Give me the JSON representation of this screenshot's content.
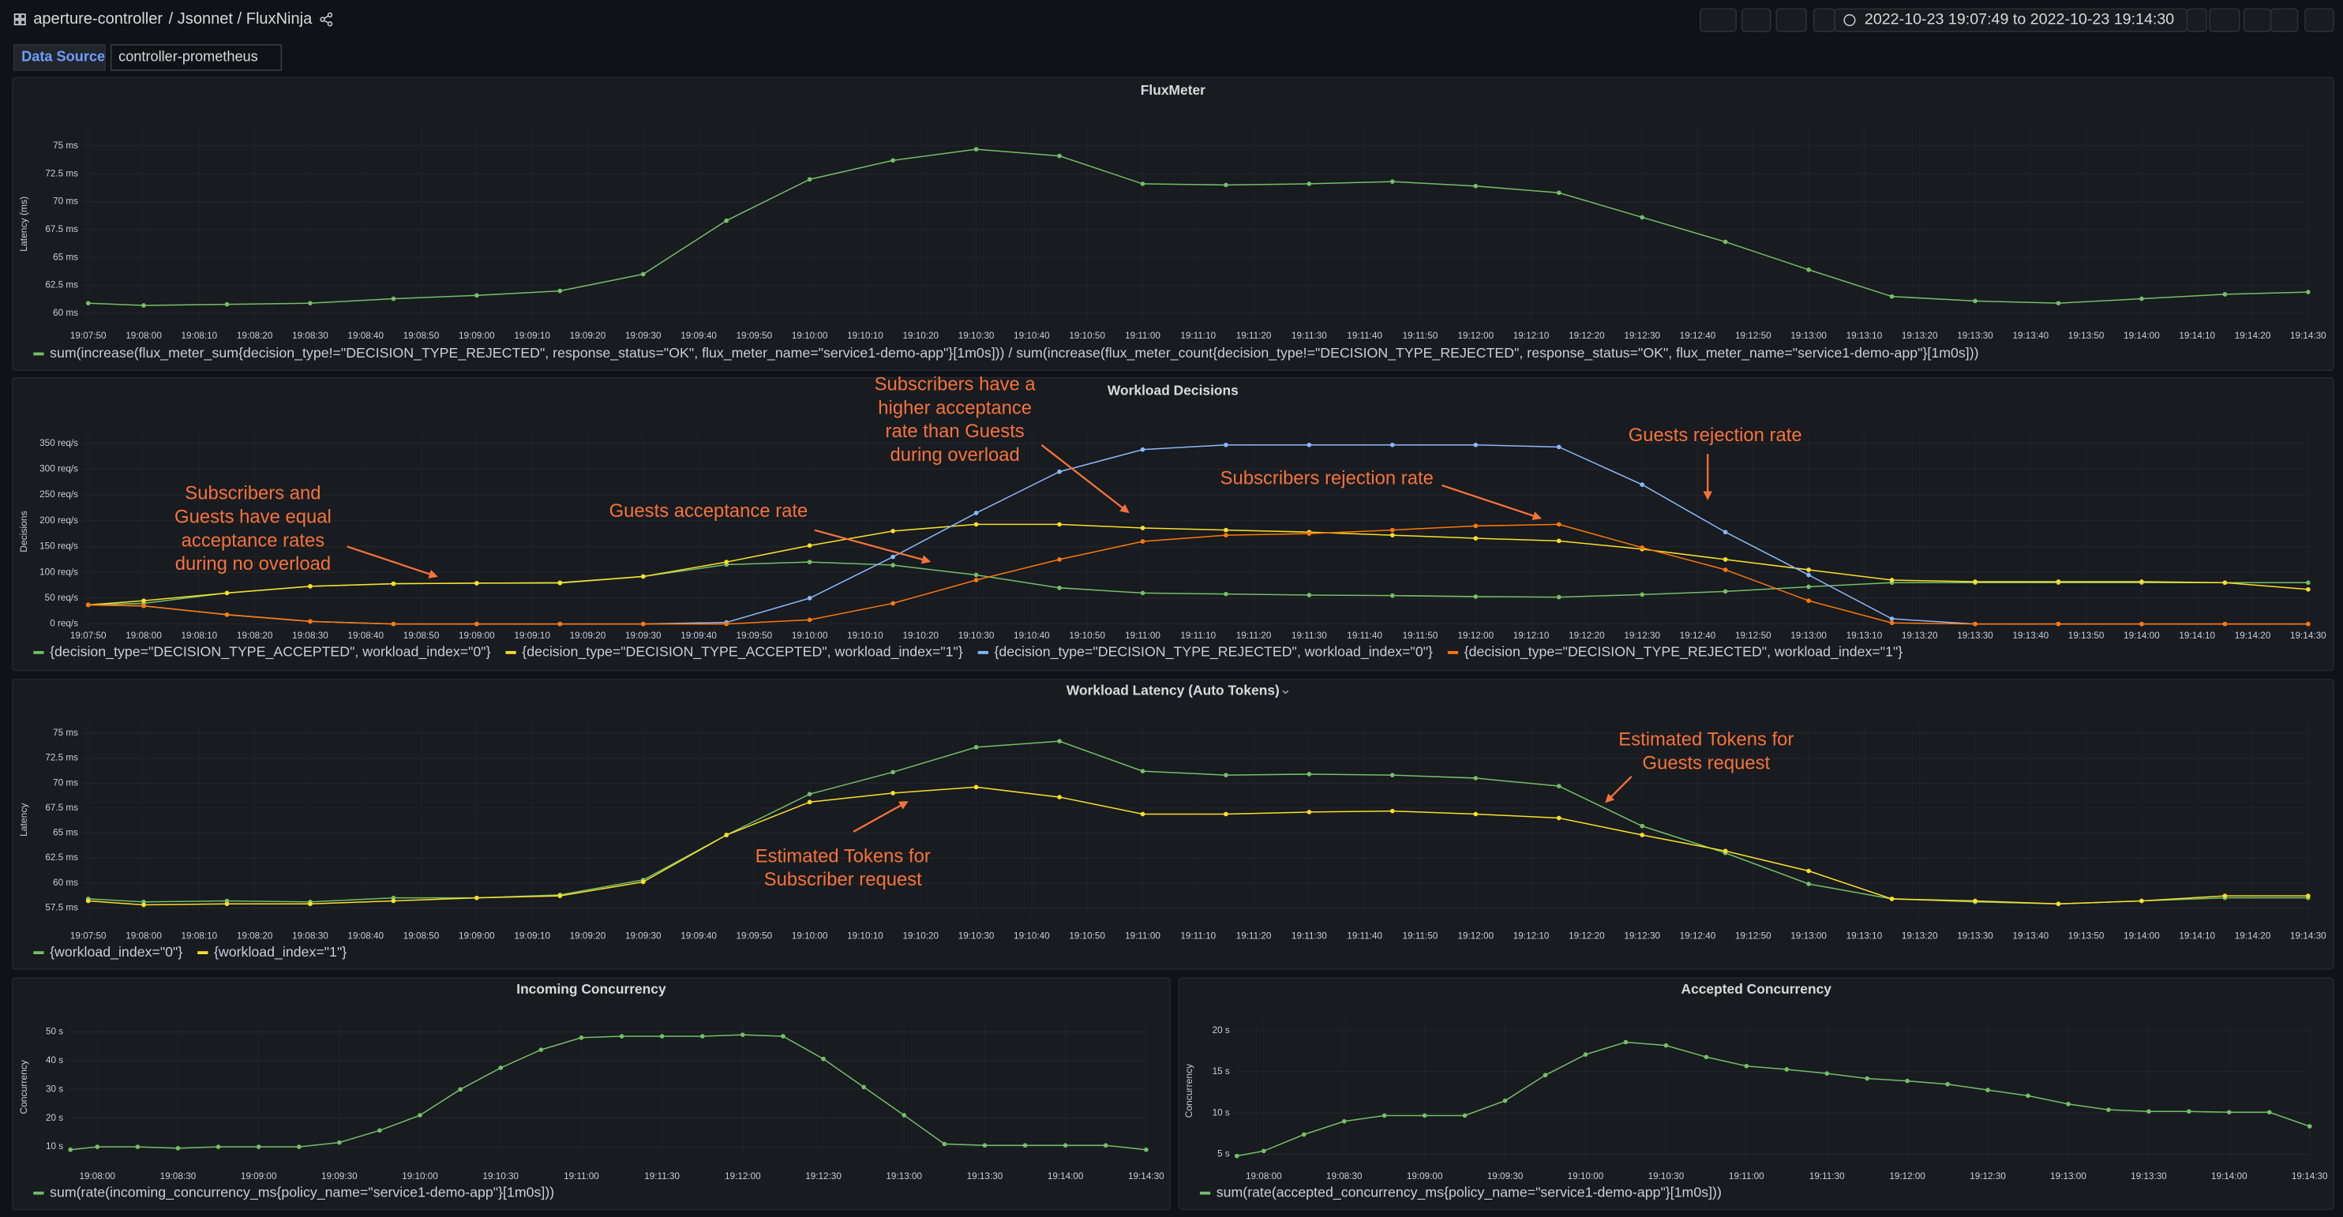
{
  "header": {
    "dashboard": "aperture-controller",
    "path": "/ Jsonnet / FluxNinja",
    "time_range": "2022-10-23 19:07:49 to 2022-10-23 19:14:30"
  },
  "variables": {
    "label": "Data Source",
    "value": "controller-prometheus"
  },
  "chart_data": [
    {
      "type": "line",
      "title": "FluxMeter",
      "y_label": "Latency (ms)",
      "grid": true,
      "x": [
        "19:07:50",
        "19:08:00",
        "19:08:15",
        "19:08:30",
        "19:08:45",
        "19:09:00",
        "19:09:15",
        "19:09:30",
        "19:09:45",
        "19:10:00",
        "19:10:15",
        "19:10:30",
        "19:10:45",
        "19:11:00",
        "19:11:15",
        "19:11:30",
        "19:11:45",
        "19:12:00",
        "19:12:15",
        "19:12:30",
        "19:12:45",
        "19:13:00",
        "19:13:15",
        "19:13:30",
        "19:13:45",
        "19:14:00",
        "19:14:15",
        "19:14:30"
      ],
      "xlim": [
        "19:07:49",
        "19:14:30"
      ],
      "xticks": [
        "19:07:50",
        "19:08:00",
        "19:08:10",
        "19:08:20",
        "19:08:30",
        "19:08:40",
        "19:08:50",
        "19:09:00",
        "19:09:10",
        "19:09:20",
        "19:09:30",
        "19:09:40",
        "19:09:50",
        "19:10:00",
        "19:10:10",
        "19:10:20",
        "19:10:30",
        "19:10:40",
        "19:10:50",
        "19:11:00",
        "19:11:10",
        "19:11:20",
        "19:11:30",
        "19:11:40",
        "19:11:50",
        "19:12:00",
        "19:12:10",
        "19:12:20",
        "19:12:30",
        "19:12:40",
        "19:12:50",
        "19:13:00",
        "19:13:10",
        "19:13:20",
        "19:13:30",
        "19:13:40",
        "19:13:50",
        "19:14:00",
        "19:14:10",
        "19:14:20",
        "19:14:30"
      ],
      "ylim": [
        59.3,
        76.7
      ],
      "yticks": [
        {
          "value": 60,
          "label": "60 ms"
        },
        {
          "value": 62.5,
          "label": "62.5 ms"
        },
        {
          "value": 65,
          "label": "65 ms"
        },
        {
          "value": 67.5,
          "label": "67.5 ms"
        },
        {
          "value": 70,
          "label": "70 ms"
        },
        {
          "value": 72.5,
          "label": "72.5 ms"
        },
        {
          "value": 75,
          "label": "75 ms"
        }
      ],
      "series": [
        {
          "name": "sum(increase(flux_meter_sum{decision_type!=\"DECISION_TYPE_REJECTED\", response_status=\"OK\", flux_meter_name=\"service1-demo-app\"}[1m0s])) / sum(increase(flux_meter_count{decision_type!=\"DECISION_TYPE_REJECTED\", response_status=\"OK\", flux_meter_name=\"service1-demo-app\"}[1m0s]))",
          "color": "#73bf69",
          "values": [
            60.9,
            60.7,
            60.8,
            60.9,
            61.3,
            61.6,
            62.0,
            63.5,
            68.3,
            72.0,
            73.7,
            74.7,
            74.1,
            71.6,
            71.5,
            71.6,
            71.8,
            71.4,
            70.8,
            68.6,
            66.4,
            63.9,
            61.5,
            61.1,
            60.9,
            61.3,
            61.7,
            61.9
          ]
        }
      ]
    },
    {
      "type": "line",
      "title": "Workload Decisions",
      "y_label": "Decisions",
      "grid": true,
      "x": [
        "19:07:50",
        "19:08:00",
        "19:08:15",
        "19:08:30",
        "19:08:45",
        "19:09:00",
        "19:09:15",
        "19:09:30",
        "19:09:45",
        "19:10:00",
        "19:10:15",
        "19:10:30",
        "19:10:45",
        "19:11:00",
        "19:11:15",
        "19:11:30",
        "19:11:45",
        "19:12:00",
        "19:12:15",
        "19:12:30",
        "19:12:45",
        "19:13:00",
        "19:13:15",
        "19:13:30",
        "19:13:45",
        "19:14:00",
        "19:14:15",
        "19:14:30"
      ],
      "xlim": [
        "19:07:49",
        "19:14:30"
      ],
      "xticks": [
        "19:07:50",
        "19:08:00",
        "19:08:10",
        "19:08:20",
        "19:08:30",
        "19:08:40",
        "19:08:50",
        "19:09:00",
        "19:09:10",
        "19:09:20",
        "19:09:30",
        "19:09:40",
        "19:09:50",
        "19:10:00",
        "19:10:10",
        "19:10:20",
        "19:10:30",
        "19:10:40",
        "19:10:50",
        "19:11:00",
        "19:11:10",
        "19:11:20",
        "19:11:30",
        "19:11:40",
        "19:11:50",
        "19:12:00",
        "19:12:10",
        "19:12:20",
        "19:12:30",
        "19:12:40",
        "19:12:50",
        "19:13:00",
        "19:13:10",
        "19:13:20",
        "19:13:30",
        "19:13:40",
        "19:13:50",
        "19:14:00",
        "19:14:10",
        "19:14:20",
        "19:14:30"
      ],
      "ylim": [
        -12,
        370
      ],
      "yticks": [
        {
          "value": 0,
          "label": "0 req/s"
        },
        {
          "value": 50,
          "label": "50 req/s"
        },
        {
          "value": 100,
          "label": "100 req/s"
        },
        {
          "value": 150,
          "label": "150 req/s"
        },
        {
          "value": 200,
          "label": "200 req/s"
        },
        {
          "value": 250,
          "label": "250 req/s"
        },
        {
          "value": 300,
          "label": "300 req/s"
        },
        {
          "value": 350,
          "label": "350 req/s"
        }
      ],
      "series": [
        {
          "name": "{decision_type=\"DECISION_TYPE_ACCEPTED\", workload_index=\"0\"}",
          "color": "#73bf69",
          "values": [
            37,
            40,
            60,
            73,
            78,
            79,
            79,
            92,
            115,
            120,
            114,
            95,
            70,
            60,
            58,
            56,
            55,
            53,
            52,
            57,
            63,
            72,
            80,
            80,
            80,
            80,
            80,
            80
          ]
        },
        {
          "name": "{decision_type=\"DECISION_TYPE_ACCEPTED\", workload_index=\"1\"}",
          "color": "#fade2a",
          "values": [
            37,
            45,
            60,
            73,
            78,
            79,
            80,
            92,
            120,
            152,
            180,
            193,
            193,
            186,
            182,
            178,
            172,
            166,
            161,
            145,
            125,
            105,
            85,
            82,
            82,
            82,
            80,
            67
          ]
        },
        {
          "name": "{decision_type=\"DECISION_TYPE_REJECTED\", workload_index=\"0\"}",
          "color": "#8ab8ff",
          "values": [
            37,
            35,
            18,
            5,
            0,
            0,
            0,
            0,
            3,
            50,
            130,
            215,
            295,
            338,
            347,
            347,
            347,
            347,
            343,
            270,
            178,
            95,
            10,
            0,
            0,
            0,
            0,
            0
          ]
        },
        {
          "name": "{decision_type=\"DECISION_TYPE_REJECTED\", workload_index=\"1\"}",
          "color": "#ff780a",
          "values": [
            37,
            35,
            18,
            5,
            0,
            0,
            0,
            0,
            0,
            8,
            40,
            85,
            125,
            160,
            172,
            175,
            182,
            190,
            193,
            148,
            105,
            45,
            2,
            0,
            0,
            0,
            0,
            0
          ]
        }
      ],
      "annotations": [
        {
          "lines": [
            "Subscribers  and",
            "Guests have equal",
            "acceptance rates",
            "during no overload"
          ]
        },
        {
          "lines": [
            "Guests acceptance rate"
          ]
        },
        {
          "lines": [
            "Subscribers have a",
            "higher acceptance",
            "rate than Guests",
            "during overload"
          ]
        },
        {
          "lines": [
            "Subscribers rejection rate"
          ]
        },
        {
          "lines": [
            "Guests rejection rate"
          ]
        }
      ]
    },
    {
      "type": "line",
      "title": "Workload Latency (Auto Tokens)",
      "y_label": "Latency",
      "grid": true,
      "x": [
        "19:07:50",
        "19:08:00",
        "19:08:15",
        "19:08:30",
        "19:08:45",
        "19:09:00",
        "19:09:15",
        "19:09:30",
        "19:09:45",
        "19:10:00",
        "19:10:15",
        "19:10:30",
        "19:10:45",
        "19:11:00",
        "19:11:15",
        "19:11:30",
        "19:11:45",
        "19:12:00",
        "19:12:15",
        "19:12:30",
        "19:12:45",
        "19:13:00",
        "19:13:15",
        "19:13:30",
        "19:13:45",
        "19:14:00",
        "19:14:15",
        "19:14:30"
      ],
      "xlim": [
        "19:07:49",
        "19:14:30"
      ],
      "xticks": [
        "19:07:50",
        "19:08:00",
        "19:08:10",
        "19:08:20",
        "19:08:30",
        "19:08:40",
        "19:08:50",
        "19:09:00",
        "19:09:10",
        "19:09:20",
        "19:09:30",
        "19:09:40",
        "19:09:50",
        "19:10:00",
        "19:10:10",
        "19:10:20",
        "19:10:30",
        "19:10:40",
        "19:10:50",
        "19:11:00",
        "19:11:10",
        "19:11:20",
        "19:11:30",
        "19:11:40",
        "19:11:50",
        "19:12:00",
        "19:12:10",
        "19:12:20",
        "19:12:30",
        "19:12:40",
        "19:12:50",
        "19:13:00",
        "19:13:10",
        "19:13:20",
        "19:13:30",
        "19:13:40",
        "19:13:50",
        "19:14:00",
        "19:14:10",
        "19:14:20",
        "19:14:30"
      ],
      "ylim": [
        56.6,
        76.05
      ],
      "yticks": [
        {
          "value": 57.5,
          "label": "57.5 ms"
        },
        {
          "value": 60,
          "label": "60 ms"
        },
        {
          "value": 62.5,
          "label": "62.5 ms"
        },
        {
          "value": 65,
          "label": "65 ms"
        },
        {
          "value": 67.5,
          "label": "67.5 ms"
        },
        {
          "value": 70,
          "label": "70 ms"
        },
        {
          "value": 72.5,
          "label": "72.5 ms"
        },
        {
          "value": 75,
          "label": "75 ms"
        }
      ],
      "series": [
        {
          "name": "{workload_index=\"0\"}",
          "color": "#73bf69",
          "values": [
            58.4,
            58.1,
            58.2,
            58.1,
            58.5,
            58.5,
            58.8,
            60.3,
            64.8,
            68.9,
            71.1,
            73.6,
            74.2,
            71.2,
            70.8,
            70.9,
            70.8,
            70.5,
            69.7,
            65.7,
            63.0,
            59.9,
            58.4,
            58.1,
            57.9,
            58.2,
            58.5,
            58.5
          ]
        },
        {
          "name": "{workload_index=\"1\"}",
          "color": "#fade2a",
          "values": [
            58.2,
            57.8,
            57.9,
            57.9,
            58.2,
            58.5,
            58.7,
            60.1,
            64.8,
            68.1,
            69.0,
            69.6,
            68.6,
            66.9,
            66.9,
            67.1,
            67.2,
            66.9,
            66.5,
            64.8,
            63.2,
            61.2,
            58.4,
            58.2,
            57.9,
            58.2,
            58.7,
            58.7
          ]
        }
      ],
      "annotations": [
        {
          "lines": [
            "Estimated Tokens for",
            "Guests request"
          ]
        },
        {
          "lines": [
            "Estimated Tokens for",
            "Subscriber request"
          ]
        }
      ]
    },
    {
      "type": "line",
      "title": "Incoming Concurrency",
      "y_label": "Concurrency",
      "grid": true,
      "x": [
        "19:07:50",
        "19:08:00",
        "19:08:15",
        "19:08:30",
        "19:08:45",
        "19:09:00",
        "19:09:15",
        "19:09:30",
        "19:09:45",
        "19:10:00",
        "19:10:15",
        "19:10:30",
        "19:10:45",
        "19:11:00",
        "19:11:15",
        "19:11:30",
        "19:11:45",
        "19:12:00",
        "19:12:15",
        "19:12:30",
        "19:12:45",
        "19:13:00",
        "19:13:15",
        "19:13:30",
        "19:13:45",
        "19:14:00",
        "19:14:15",
        "19:14:30"
      ],
      "xlim": [
        "19:07:49",
        "19:14:30"
      ],
      "xticks": [
        "19:08:00",
        "19:08:30",
        "19:09:00",
        "19:09:30",
        "19:10:00",
        "19:10:30",
        "19:11:00",
        "19:11:30",
        "19:12:00",
        "19:12:30",
        "19:13:00",
        "19:13:30",
        "19:14:00",
        "19:14:30"
      ],
      "ylim": [
        7.4,
        54.2
      ],
      "yticks": [
        {
          "value": 10,
          "label": "10 s"
        },
        {
          "value": 20,
          "label": "20 s"
        },
        {
          "value": 30,
          "label": "30 s"
        },
        {
          "value": 40,
          "label": "40 s"
        },
        {
          "value": 50,
          "label": "50 s"
        }
      ],
      "series": [
        {
          "name": "sum(rate(incoming_concurrency_ms{policy_name=\"service1-demo-app\"}[1m0s]))",
          "color": "#73bf69",
          "values": [
            9,
            10,
            10,
            9.5,
            10,
            10,
            10,
            11.5,
            15.7,
            21,
            30,
            37.5,
            43.8,
            48,
            48.5,
            48.5,
            48.5,
            49,
            48.5,
            40.6,
            30.8,
            21,
            11,
            10.5,
            10.5,
            10.5,
            10.5,
            9
          ]
        }
      ]
    },
    {
      "type": "line",
      "title": "Accepted Concurrency",
      "y_label": "Concurrency",
      "grid": true,
      "x": [
        "19:07:50",
        "19:08:00",
        "19:08:15",
        "19:08:30",
        "19:08:45",
        "19:09:00",
        "19:09:15",
        "19:09:30",
        "19:09:45",
        "19:10:00",
        "19:10:15",
        "19:10:30",
        "19:10:45",
        "19:11:00",
        "19:11:15",
        "19:11:30",
        "19:11:45",
        "19:12:00",
        "19:12:15",
        "19:12:30",
        "19:12:45",
        "19:13:00",
        "19:13:15",
        "19:13:30",
        "19:13:45",
        "19:14:00",
        "19:14:15",
        "19:14:30"
      ],
      "xlim": [
        "19:07:49",
        "19:14:30"
      ],
      "xticks": [
        "19:08:00",
        "19:08:30",
        "19:09:00",
        "19:09:30",
        "19:10:00",
        "19:10:30",
        "19:11:00",
        "19:11:30",
        "19:12:00",
        "19:12:30",
        "19:13:00",
        "19:13:30",
        "19:14:00",
        "19:14:30"
      ],
      "ylim": [
        4.1,
        21.3
      ],
      "yticks": [
        {
          "value": 5,
          "label": "5 s"
        },
        {
          "value": 10,
          "label": "10 s"
        },
        {
          "value": 15,
          "label": "15 s"
        },
        {
          "value": 20,
          "label": "20 s"
        }
      ],
      "series": [
        {
          "name": "sum(rate(accepted_concurrency_ms{policy_name=\"service1-demo-app\"}[1m0s]))",
          "color": "#73bf69",
          "values": [
            4.8,
            5.4,
            7.4,
            9.0,
            9.7,
            9.7,
            9.7,
            11.5,
            14.6,
            17.1,
            18.6,
            18.2,
            16.8,
            15.7,
            15.3,
            14.8,
            14.2,
            13.9,
            13.5,
            12.8,
            12.1,
            11.1,
            10.4,
            10.2,
            10.2,
            10.1,
            10.1,
            8.4
          ]
        }
      ]
    }
  ]
}
